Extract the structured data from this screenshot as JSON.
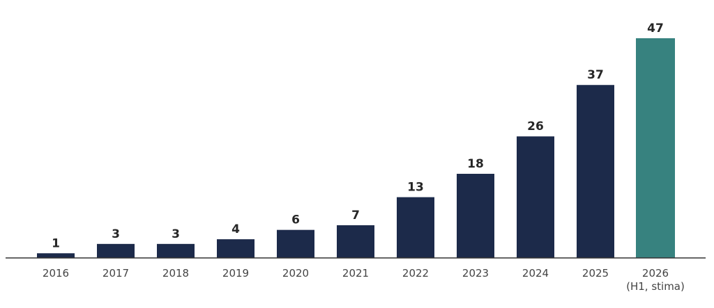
{
  "chart_data": {
    "type": "bar",
    "title": "",
    "xlabel": "",
    "ylabel": "",
    "categories": [
      {
        "label": "2016",
        "sublabel": ""
      },
      {
        "label": "2017",
        "sublabel": ""
      },
      {
        "label": "2018",
        "sublabel": ""
      },
      {
        "label": "2019",
        "sublabel": ""
      },
      {
        "label": "2020",
        "sublabel": ""
      },
      {
        "label": "2021",
        "sublabel": ""
      },
      {
        "label": "2022",
        "sublabel": ""
      },
      {
        "label": "2023",
        "sublabel": ""
      },
      {
        "label": "2024",
        "sublabel": ""
      },
      {
        "label": "2025",
        "sublabel": ""
      },
      {
        "label": "2026",
        "sublabel": "(H1, stima)"
      }
    ],
    "values": [
      1,
      3,
      3,
      4,
      6,
      7,
      13,
      18,
      26,
      37,
      47
    ],
    "data_labels": [
      "1",
      "3",
      "3",
      "4",
      "6",
      "7",
      "13",
      "18",
      "26",
      "37",
      "47"
    ],
    "ylim": [
      0,
      50
    ],
    "grid": false,
    "colors": {
      "default": "#1c2a4a",
      "highlight": "#37827f"
    },
    "highlight_index": 10
  }
}
